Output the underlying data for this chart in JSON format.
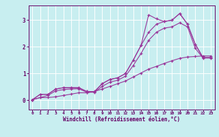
{
  "bg_color": "#c8eef0",
  "line_color": "#993399",
  "grid_color": "#ffffff",
  "xlabel": "Windchill (Refroidissement éolien,°C)",
  "xlabel_color": "#660066",
  "tick_color": "#660066",
  "xlim": [
    -0.5,
    23.5
  ],
  "ylim": [
    -0.35,
    3.55
  ],
  "yticks": [
    0,
    1,
    2,
    3
  ],
  "xticks": [
    0,
    1,
    2,
    3,
    4,
    5,
    6,
    7,
    8,
    9,
    10,
    11,
    12,
    13,
    14,
    15,
    16,
    17,
    18,
    19,
    20,
    21,
    22,
    23
  ],
  "series": [
    [
      0.02,
      0.22,
      0.22,
      0.42,
      0.47,
      0.47,
      0.47,
      0.33,
      0.32,
      0.62,
      0.78,
      0.84,
      1.0,
      1.5,
      2.05,
      3.2,
      3.05,
      2.95,
      3.0,
      3.25,
      2.85,
      2.1,
      1.6,
      1.6
    ],
    [
      0.02,
      0.22,
      0.22,
      0.42,
      0.47,
      0.47,
      0.47,
      0.33,
      0.32,
      0.62,
      0.78,
      0.84,
      1.0,
      1.5,
      2.05,
      2.55,
      2.85,
      2.95,
      3.0,
      3.25,
      2.85,
      2.1,
      1.6,
      1.6
    ],
    [
      0.02,
      0.1,
      0.18,
      0.35,
      0.4,
      0.42,
      0.43,
      0.3,
      0.3,
      0.52,
      0.68,
      0.75,
      0.9,
      1.3,
      1.75,
      2.25,
      2.55,
      2.7,
      2.75,
      2.9,
      2.75,
      1.95,
      1.58,
      1.58
    ],
    [
      0.02,
      0.1,
      0.1,
      0.13,
      0.18,
      0.23,
      0.28,
      0.28,
      0.33,
      0.42,
      0.52,
      0.62,
      0.72,
      0.87,
      1.02,
      1.17,
      1.27,
      1.38,
      1.48,
      1.57,
      1.62,
      1.64,
      1.66,
      1.66
    ]
  ],
  "figwidth": 3.2,
  "figheight": 2.0,
  "dpi": 100
}
